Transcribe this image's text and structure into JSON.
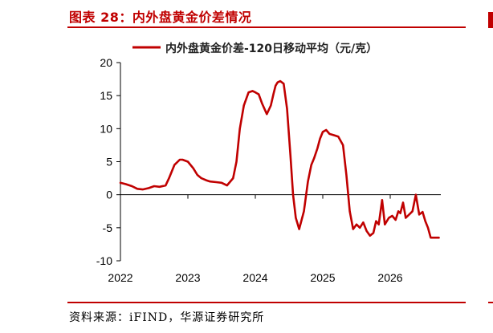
{
  "figure_title": "图表 28：内外盘黄金价差情况",
  "source": "资料来源：iFIND，华源证券研究所",
  "chart_data": {
    "type": "line",
    "title": "",
    "xlabel": "",
    "ylabel": "",
    "ylim": [
      -10,
      20
    ],
    "yticks": [
      -10,
      -5,
      0,
      5,
      10,
      15,
      20
    ],
    "xticks": [
      "2022",
      "2023",
      "2024",
      "2025",
      "2026"
    ],
    "x_range": [
      2022.0,
      2026.75
    ],
    "grid": false,
    "legend_position": "top",
    "series": [
      {
        "name": "内外盘黄金价差-120日移动平均（元/克）",
        "color": "#c00000",
        "x": [
          2022.0,
          2022.08,
          2022.17,
          2022.25,
          2022.33,
          2022.42,
          2022.5,
          2022.58,
          2022.67,
          2022.72,
          2022.8,
          2022.88,
          2022.92,
          2023.0,
          2023.08,
          2023.14,
          2023.2,
          2023.27,
          2023.33,
          2023.42,
          2023.5,
          2023.58,
          2023.67,
          2023.72,
          2023.77,
          2023.83,
          2023.9,
          2023.96,
          2024.0,
          2024.05,
          2024.1,
          2024.17,
          2024.23,
          2024.27,
          2024.3,
          2024.33,
          2024.37,
          2024.42,
          2024.47,
          2024.52,
          2024.56,
          2024.6,
          2024.65,
          2024.72,
          2024.78,
          2024.83,
          2024.87,
          2024.92,
          2024.96,
          2025.0,
          2025.05,
          2025.1,
          2025.17,
          2025.23,
          2025.3,
          2025.35,
          2025.4,
          2025.45,
          2025.5,
          2025.55,
          2025.6,
          2025.65,
          2025.7,
          2025.75,
          2025.79,
          2025.83,
          2025.88,
          2025.92,
          2025.98,
          2026.03,
          2026.08,
          2026.12,
          2026.15,
          2026.19,
          2026.23,
          2026.28,
          2026.33,
          2026.38,
          2026.43,
          2026.48,
          2026.52,
          2026.56,
          2026.6,
          2026.63,
          2026.66,
          2026.69,
          2026.72
        ],
        "values": [
          1.8,
          1.6,
          1.3,
          0.9,
          0.8,
          1.0,
          1.3,
          1.2,
          1.4,
          2.5,
          4.5,
          5.3,
          5.3,
          5.0,
          4.0,
          3.0,
          2.5,
          2.2,
          2.0,
          1.9,
          1.8,
          1.4,
          2.5,
          5.0,
          10.0,
          13.5,
          15.5,
          15.7,
          15.5,
          15.2,
          13.8,
          12.2,
          13.5,
          15.3,
          16.5,
          17.0,
          17.2,
          16.8,
          13.0,
          6.0,
          0.0,
          -3.5,
          -5.2,
          -2.5,
          2.0,
          4.5,
          5.5,
          7.0,
          8.5,
          9.5,
          9.8,
          9.2,
          9.0,
          8.8,
          7.5,
          3.0,
          -2.5,
          -5.2,
          -4.5,
          -5.0,
          -4.2,
          -5.5,
          -6.2,
          -5.8,
          -4.0,
          -4.5,
          -0.8,
          -4.5,
          -3.5,
          -3.2,
          -3.8,
          -2.5,
          -2.8,
          -1.2,
          -3.5,
          -3.0,
          -2.5,
          0.0,
          -3.0,
          -2.6,
          -4.0,
          -5.0,
          -6.5,
          -6.5,
          -6.5,
          -6.5,
          -6.5
        ]
      }
    ]
  }
}
